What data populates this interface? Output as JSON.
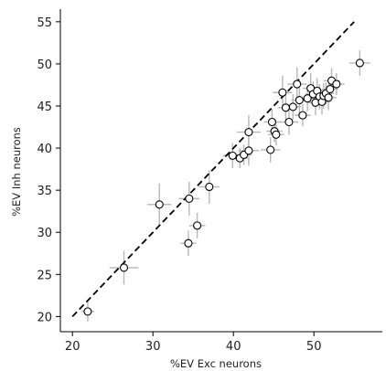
{
  "chart_data": {
    "type": "scatter",
    "title": "",
    "xlabel": "%EV Exc neurons",
    "ylabel": "%EV Inh neurons",
    "xlim": [
      18.5,
      58.5
    ],
    "ylim": [
      18.2,
      56.5
    ],
    "xticks": [
      20,
      30,
      40,
      50
    ],
    "yticks": [
      20,
      25,
      30,
      35,
      40,
      45,
      50,
      55
    ],
    "grid": false,
    "legend": "none",
    "reference_line": {
      "style": "dashed",
      "x": [
        20,
        55
      ],
      "y": [
        20,
        55
      ]
    },
    "colors": {
      "marker_fill": "#ffffff",
      "marker_edge": "#000000",
      "error_bar": "#b8b8b8",
      "axis": "#000000",
      "reference_line": "#000000"
    },
    "points": [
      {
        "x": 21.9,
        "y": 20.6,
        "xerr": 0.8,
        "yerr": 1.2
      },
      {
        "x": 26.4,
        "y": 25.8,
        "xerr": 1.8,
        "yerr": 2.0
      },
      {
        "x": 30.8,
        "y": 33.3,
        "xerr": 1.5,
        "yerr": 2.5
      },
      {
        "x": 34.4,
        "y": 28.7,
        "xerr": 1.0,
        "yerr": 1.5
      },
      {
        "x": 34.5,
        "y": 34.0,
        "xerr": 1.3,
        "yerr": 2.0
      },
      {
        "x": 35.5,
        "y": 30.8,
        "xerr": 1.0,
        "yerr": 1.5
      },
      {
        "x": 37.0,
        "y": 35.4,
        "xerr": 1.3,
        "yerr": 2.0
      },
      {
        "x": 39.9,
        "y": 39.1,
        "xerr": 1.2,
        "yerr": 1.5
      },
      {
        "x": 40.8,
        "y": 38.8,
        "xerr": 1.0,
        "yerr": 1.2
      },
      {
        "x": 41.3,
        "y": 39.2,
        "xerr": 1.0,
        "yerr": 1.2
      },
      {
        "x": 41.9,
        "y": 39.7,
        "xerr": 1.3,
        "yerr": 1.8
      },
      {
        "x": 41.9,
        "y": 41.9,
        "xerr": 1.5,
        "yerr": 2.0
      },
      {
        "x": 44.6,
        "y": 39.8,
        "xerr": 1.2,
        "yerr": 1.5
      },
      {
        "x": 44.8,
        "y": 43.1,
        "xerr": 1.0,
        "yerr": 1.5
      },
      {
        "x": 45.1,
        "y": 42.0,
        "xerr": 1.0,
        "yerr": 1.3
      },
      {
        "x": 45.3,
        "y": 41.6,
        "xerr": 1.0,
        "yerr": 1.3
      },
      {
        "x": 46.1,
        "y": 46.6,
        "xerr": 1.2,
        "yerr": 2.0
      },
      {
        "x": 46.5,
        "y": 44.8,
        "xerr": 1.0,
        "yerr": 1.5
      },
      {
        "x": 46.9,
        "y": 43.1,
        "xerr": 1.2,
        "yerr": 1.5
      },
      {
        "x": 47.4,
        "y": 44.9,
        "xerr": 1.0,
        "yerr": 1.5
      },
      {
        "x": 47.9,
        "y": 47.6,
        "xerr": 1.2,
        "yerr": 2.0
      },
      {
        "x": 48.2,
        "y": 45.7,
        "xerr": 1.0,
        "yerr": 1.5
      },
      {
        "x": 48.6,
        "y": 43.9,
        "xerr": 1.0,
        "yerr": 1.3
      },
      {
        "x": 49.2,
        "y": 45.9,
        "xerr": 1.0,
        "yerr": 1.5
      },
      {
        "x": 49.6,
        "y": 47.1,
        "xerr": 1.0,
        "yerr": 1.8
      },
      {
        "x": 49.9,
        "y": 46.4,
        "xerr": 1.0,
        "yerr": 1.5
      },
      {
        "x": 50.2,
        "y": 45.4,
        "xerr": 1.0,
        "yerr": 1.5
      },
      {
        "x": 50.4,
        "y": 46.8,
        "xerr": 1.0,
        "yerr": 1.5
      },
      {
        "x": 50.7,
        "y": 46.1,
        "xerr": 1.0,
        "yerr": 1.5
      },
      {
        "x": 51.0,
        "y": 45.5,
        "xerr": 1.0,
        "yerr": 1.5
      },
      {
        "x": 51.2,
        "y": 46.2,
        "xerr": 1.0,
        "yerr": 1.5
      },
      {
        "x": 51.5,
        "y": 46.5,
        "xerr": 1.0,
        "yerr": 1.3
      },
      {
        "x": 51.8,
        "y": 46.0,
        "xerr": 1.0,
        "yerr": 1.5
      },
      {
        "x": 52.0,
        "y": 47.0,
        "xerr": 1.0,
        "yerr": 1.5
      },
      {
        "x": 52.2,
        "y": 48.0,
        "xerr": 1.0,
        "yerr": 1.5
      },
      {
        "x": 52.8,
        "y": 47.6,
        "xerr": 1.0,
        "yerr": 1.3
      },
      {
        "x": 55.7,
        "y": 50.1,
        "xerr": 1.3,
        "yerr": 1.5
      }
    ]
  }
}
